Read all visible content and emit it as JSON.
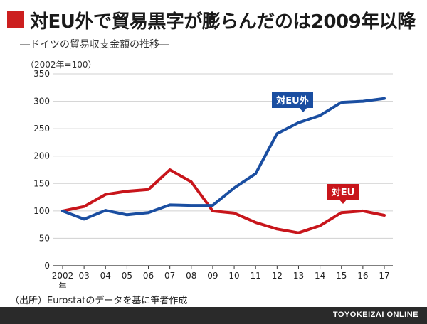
{
  "header": {
    "title": "対EU外で貿易黒字が膨らんだのは2009年以降",
    "subtitle": "―ドイツの貿易収支金額の推移―"
  },
  "unit_note": "（2002年=100）",
  "source": "（出所）Eurostatのデータを基に筆者作成",
  "footer": {
    "brand": "TOYOKEIZAI ONLINE"
  },
  "colors": {
    "accent": "#cc1f1f",
    "non_eu": "#1a4ea1",
    "eu": "#c8151b",
    "footer_bg": "#2a2a2a"
  },
  "chart_data": {
    "type": "line",
    "title": "",
    "x": [
      "2002",
      "03",
      "04",
      "05",
      "06",
      "07",
      "08",
      "09",
      "10",
      "11",
      "12",
      "13",
      "14",
      "15",
      "16",
      "17"
    ],
    "x_first_suffix": "年",
    "ylim": [
      0,
      350
    ],
    "yticks": [
      0,
      50,
      100,
      150,
      200,
      250,
      300,
      350
    ],
    "grid": true,
    "series": [
      {
        "name": "対EU外",
        "color": "#1a4ea1",
        "values": [
          100,
          85,
          101,
          93,
          97,
          111,
          110,
          110,
          142,
          168,
          241,
          261,
          274,
          298,
          300,
          305
        ]
      },
      {
        "name": "対EU",
        "color": "#c8151b",
        "values": [
          100,
          108,
          130,
          136,
          139,
          175,
          153,
          100,
          96,
          79,
          67,
          60,
          73,
          97,
          100,
          92
        ]
      }
    ]
  }
}
